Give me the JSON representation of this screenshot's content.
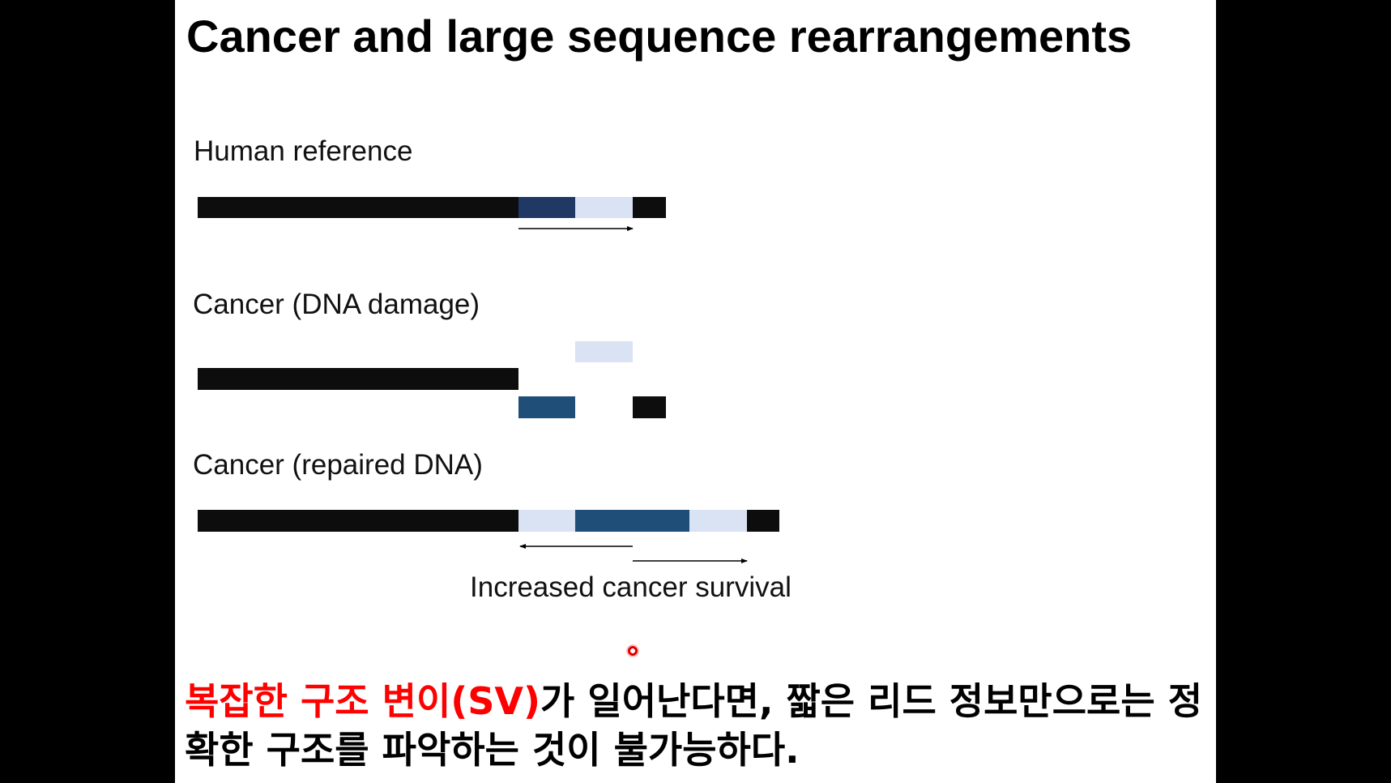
{
  "slide": {
    "title": "Cancer and large sequence rearrangements",
    "labels": {
      "human_reference": "Human reference",
      "cancer_damage": "Cancer (DNA damage)",
      "cancer_repaired": "Cancer (repaired DNA)",
      "survival_note": "Increased cancer survival"
    },
    "bottom_text": {
      "highlight": "복잡한 구조 변이(SV)",
      "rest": "가 일어난다면, 짧은 리드 정보만으로는 정확한 구조를 파악하는 것이 불가능하다."
    }
  },
  "colors": {
    "black_segment": "#0d0d0d",
    "dark_blue": "#203864",
    "mid_blue": "#1f4e79",
    "light_blue": "#dae3f3",
    "highlight_red": "#ff0000"
  }
}
